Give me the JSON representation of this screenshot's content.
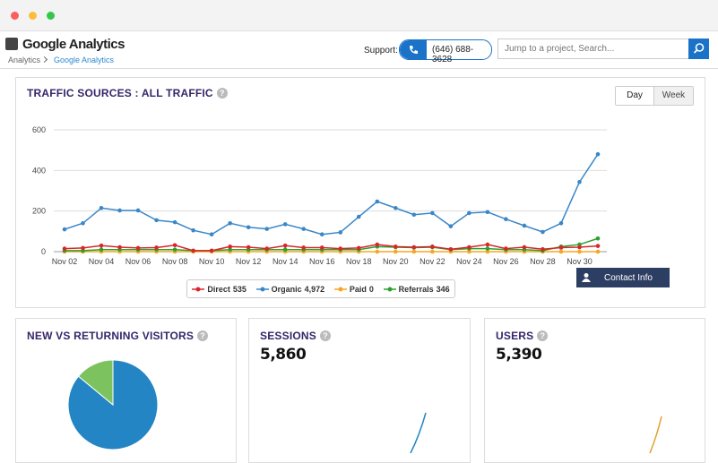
{
  "header": {
    "app_title": "Google Analytics",
    "breadcrumb": [
      "Analytics",
      "Google Analytics"
    ],
    "support_label": "Support:",
    "phone": "(646) 688-3628",
    "search_placeholder": "Jump to a project, Search...",
    "help_icon": "?"
  },
  "traffic": {
    "buttons": [
      "Day",
      "Week"
    ],
    "contact_button": "Contact Info",
    "chart_data": {
      "type": "line",
      "title": "TRAFFIC SOURCES : ALL TRAFFIC",
      "categories": [
        "Nov 02",
        null,
        "Nov 04",
        null,
        "Nov 06",
        null,
        "Nov 08",
        null,
        "Nov 10",
        null,
        "Nov 12",
        null,
        "Nov 14",
        null,
        "Nov 16",
        null,
        "Nov 18",
        null,
        "Nov 20",
        null,
        "Nov 22",
        null,
        "Nov 24",
        null,
        "Nov 26",
        null,
        "Nov 28",
        null,
        "Nov 30",
        null
      ],
      "ylim": [
        0,
        600
      ],
      "yticks": [
        0,
        200,
        400,
        600
      ],
      "grid": true,
      "series": [
        {
          "name": "Direct",
          "total": 535,
          "total_label": "535",
          "color": "#d9262c",
          "values": [
            15,
            18,
            30,
            22,
            18,
            20,
            32,
            5,
            5,
            25,
            22,
            15,
            30,
            20,
            20,
            15,
            18,
            35,
            25,
            22,
            25,
            12,
            22,
            35,
            15,
            22,
            12,
            20,
            22,
            28
          ]
        },
        {
          "name": "Organic",
          "total": 4972,
          "total_label": "4,972",
          "color": "#3a87c8",
          "values": [
            110,
            140,
            215,
            203,
            203,
            155,
            145,
            105,
            85,
            140,
            120,
            112,
            135,
            112,
            85,
            95,
            172,
            247,
            215,
            182,
            190,
            125,
            190,
            195,
            160,
            128,
            97,
            140,
            343,
            480
          ]
        },
        {
          "name": "Paid",
          "total": 0,
          "total_label": "0",
          "color": "#f5a623",
          "values": [
            0,
            0,
            0,
            0,
            0,
            0,
            0,
            0,
            0,
            0,
            0,
            0,
            0,
            0,
            0,
            0,
            0,
            0,
            0,
            0,
            0,
            0,
            0,
            0,
            0,
            0,
            0,
            0,
            0,
            0
          ]
        },
        {
          "name": "Referrals",
          "total": 346,
          "total_label": "346",
          "color": "#2ca02c",
          "values": [
            5,
            5,
            10,
            10,
            10,
            10,
            10,
            5,
            5,
            10,
            10,
            10,
            10,
            10,
            10,
            10,
            10,
            25,
            22,
            20,
            22,
            10,
            15,
            15,
            10,
            10,
            5,
            25,
            35,
            65
          ]
        }
      ]
    }
  },
  "visitors": {
    "chart_data": {
      "type": "pie",
      "title": "NEW VS RETURNING VISITORS",
      "values": [
        86,
        14
      ],
      "colors": [
        "#2385c3",
        "#7cc35f"
      ]
    }
  },
  "sessions": {
    "title": "SESSIONS",
    "value": "5,860"
  },
  "users": {
    "title": "USERS",
    "value": "5,390"
  }
}
